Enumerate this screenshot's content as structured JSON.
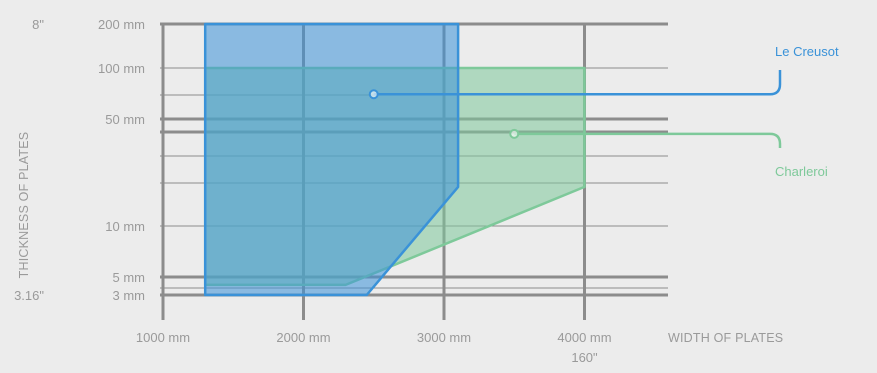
{
  "chart_data": {
    "type": "area",
    "xlabel": "WIDTH OF PLATES",
    "ylabel": "THICKNESS OF PLATES",
    "x_unit": "mm",
    "y_unit": "mm",
    "xlim": [
      1000,
      4600
    ],
    "x_ticks": [
      {
        "value": 1000,
        "label": "1000 mm"
      },
      {
        "value": 2000,
        "label": "2000 mm"
      },
      {
        "value": 3000,
        "label": "3000 mm"
      },
      {
        "value": 4000,
        "label": "4000 mm"
      }
    ],
    "x_tick_sublabels": [
      {
        "value": 4000,
        "label": "160\""
      }
    ],
    "y_ticks": [
      {
        "value": 200,
        "label": "200 mm",
        "inch_label": "8\""
      },
      {
        "value": 100,
        "label": "100 mm",
        "inch_label": ""
      },
      {
        "value": 50,
        "label": "50 mm",
        "inch_label": ""
      },
      {
        "value": 10,
        "label": "10 mm",
        "inch_label": ""
      },
      {
        "value": 5,
        "label": "5 mm",
        "inch_label": ""
      },
      {
        "value": 3,
        "label": "3 mm",
        "inch_label": "3.16\""
      }
    ],
    "series": [
      {
        "name": "Charleroi",
        "color": "#7ec99a",
        "marker": [
          3500,
          40
        ],
        "polygon": [
          [
            1300,
            4
          ],
          [
            2300,
            4
          ],
          [
            4000,
            18
          ],
          [
            4000,
            100
          ],
          [
            1300,
            100
          ]
        ]
      },
      {
        "name": "Le Creusot",
        "color": "#3a92d8",
        "marker": [
          2500,
          70
        ],
        "polygon": [
          [
            1300,
            3
          ],
          [
            2450,
            3
          ],
          [
            3100,
            18
          ],
          [
            3100,
            200
          ],
          [
            1300,
            200
          ]
        ]
      }
    ],
    "legend": "right",
    "grid": true
  }
}
